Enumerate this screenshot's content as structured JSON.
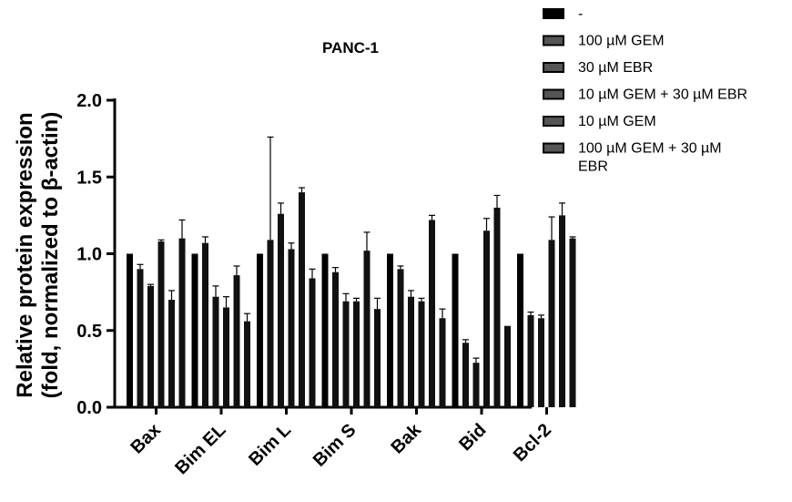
{
  "chart_data": {
    "type": "bar",
    "title": "PANC-1",
    "ylabel_lines": [
      "Relative protein expression",
      "(fold, normalized to β-actin)"
    ],
    "xlabel": "",
    "ylim": [
      0,
      2.0
    ],
    "yticks": [
      "0.0",
      "0.5",
      "1.0",
      "1.5",
      "2.0"
    ],
    "ytick_values": [
      0,
      0.5,
      1.0,
      1.5,
      2.0
    ],
    "categories": [
      "Bax",
      "Bim EL",
      "Bim L",
      "Bim S",
      "Bak",
      "Bid",
      "Bcl-2"
    ],
    "legend_position": "top-right",
    "series": [
      {
        "name": "-",
        "color": "#000000",
        "values": [
          1.0,
          1.0,
          1.0,
          1.0,
          1.0,
          1.0,
          1.0
        ],
        "errors": [
          0,
          0,
          0,
          0,
          0,
          0,
          0
        ]
      },
      {
        "name": "100 µM GEM",
        "color": "#111111",
        "values": [
          0.9,
          1.07,
          1.09,
          0.88,
          0.9,
          0.42,
          0.6
        ],
        "errors": [
          0.03,
          0.04,
          0.67,
          0.03,
          0.02,
          0.02,
          0.02
        ]
      },
      {
        "name": "30 µM EBR",
        "color": "#111111",
        "values": [
          0.79,
          0.72,
          1.26,
          0.69,
          0.72,
          0.29,
          0.58
        ],
        "errors": [
          0.01,
          0.07,
          0.07,
          0.05,
          0.04,
          0.03,
          0.02
        ]
      },
      {
        "name": "10 µM GEM + 30 µM EBR",
        "color": "#111111",
        "values": [
          1.08,
          0.65,
          1.03,
          0.69,
          0.69,
          1.15,
          1.09
        ],
        "errors": [
          0.01,
          0.07,
          0.04,
          0.02,
          0.02,
          0.08,
          0.15
        ]
      },
      {
        "name": "10 µM GEM",
        "color": "#111111",
        "values": [
          0.7,
          0.86,
          1.4,
          1.02,
          1.22,
          1.3,
          1.25
        ],
        "errors": [
          0.06,
          0.06,
          0.03,
          0.12,
          0.03,
          0.08,
          0.08
        ]
      },
      {
        "name": "100 µM GEM + 30 µM EBR",
        "color": "#111111",
        "values": [
          1.1,
          0.56,
          0.84,
          0.64,
          0.58,
          0.53,
          1.1
        ],
        "errors": [
          0.12,
          0.05,
          0.06,
          0.07,
          0.06,
          0,
          0.01
        ]
      }
    ],
    "legend_lines": [
      [
        "-"
      ],
      [
        "100 µM GEM"
      ],
      [
        "30 µM EBR"
      ],
      [
        "10 µM GEM + 30 µM EBR"
      ],
      [
        "10 µM GEM"
      ],
      [
        "100 µM GEM + 30 µM",
        "EBR"
      ]
    ]
  }
}
